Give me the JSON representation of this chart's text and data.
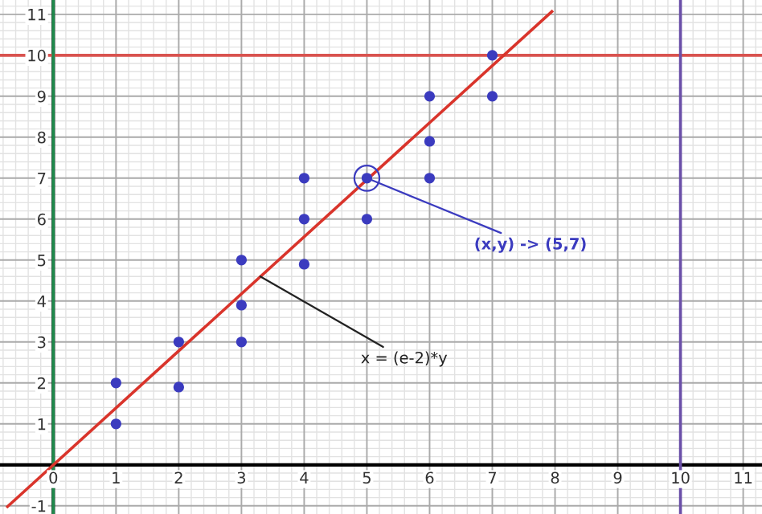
{
  "chart_data": {
    "type": "scatter",
    "series": [
      {
        "color": "#3b3bbf",
        "marker": "circle",
        "x": [
          1,
          1,
          2,
          2,
          3,
          3,
          3,
          4,
          4,
          4,
          5,
          5,
          6,
          6,
          6,
          7,
          7
        ],
        "values": [
          2,
          1,
          3,
          1.9,
          5,
          3.9,
          3,
          7,
          6,
          4.9,
          7,
          6,
          9,
          7.9,
          7,
          10,
          9
        ]
      },
      {
        "type": "line",
        "marker": "none",
        "color": "#d9342b",
        "x": [
          -0.73,
          7.95
        ],
        "values": [
          -1.02,
          11.07
        ]
      }
    ],
    "xlim": [
      -0.85,
      11.3
    ],
    "ylim": [
      -1.2,
      11.35
    ],
    "xticks": [
      0,
      1,
      2,
      3,
      4,
      5,
      6,
      7,
      8,
      9,
      10,
      11
    ],
    "yticks": [
      -1,
      1,
      2,
      3,
      4,
      5,
      6,
      7,
      8,
      9,
      10,
      11
    ],
    "grid": true,
    "ref_lines": [
      {
        "axis": "y",
        "value": 10,
        "color": "#d9534f"
      },
      {
        "axis": "x",
        "value": 10,
        "color": "#6a4fa8"
      },
      {
        "axis": "x",
        "value": 0,
        "color": "#1f8a4c"
      }
    ],
    "annotations": [
      {
        "text": "(x,y) -> (5,7)",
        "x": 5,
        "y": 7
      },
      {
        "text": "x = (e-2)*y",
        "x": 3.3,
        "y": 4.6
      }
    ]
  }
}
